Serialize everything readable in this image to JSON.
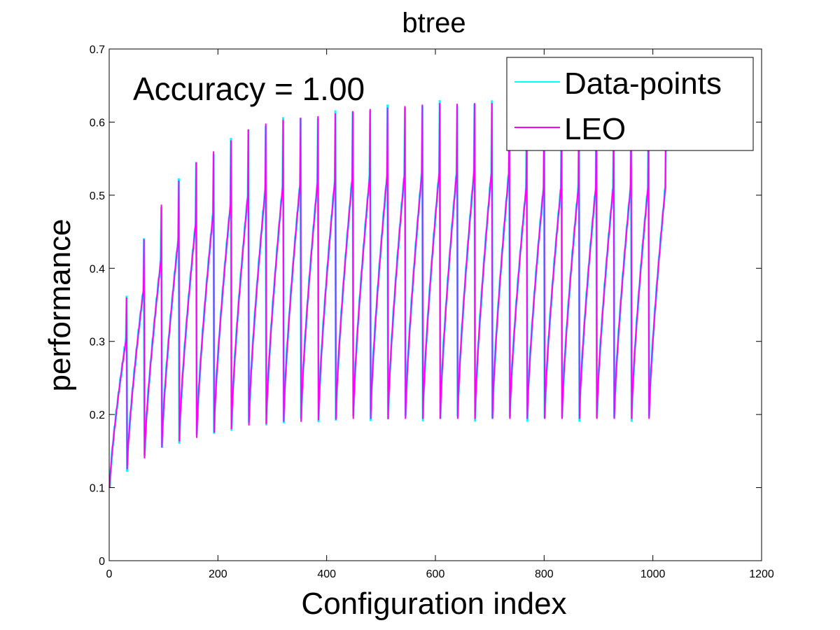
{
  "chart_data": {
    "type": "line",
    "title": "btree",
    "xlabel": "Configuration index",
    "ylabel": "performance",
    "annotation": "Accuracy = 1.00",
    "xlim": [
      0,
      1200
    ],
    "ylim": [
      0,
      0.7
    ],
    "xticks": [
      0,
      200,
      400,
      600,
      800,
      1000,
      1200
    ],
    "yticks": [
      0,
      0.1,
      0.2,
      0.3,
      0.4,
      0.5,
      0.6,
      0.7
    ],
    "xtick_labels": [
      "0",
      "200",
      "400",
      "600",
      "800",
      "1000",
      "1200"
    ],
    "ytick_labels": [
      "0",
      "0.1",
      "0.2",
      "0.3",
      "0.4",
      "0.5",
      "0.6",
      "0.7"
    ],
    "grid": false,
    "legend_position": "top-right",
    "block_size": 32,
    "block_min": [
      0.1,
      0.125,
      0.14,
      0.155,
      0.163,
      0.168,
      0.175,
      0.18,
      0.185,
      0.187,
      0.19,
      0.19,
      0.192,
      0.193,
      0.194,
      0.194,
      0.194,
      0.194,
      0.194,
      0.194,
      0.194,
      0.194,
      0.194,
      0.194,
      0.194,
      0.194,
      0.194,
      0.194,
      0.194,
      0.194,
      0.194,
      0.194
    ],
    "block_max": [
      0.36,
      0.44,
      0.487,
      0.52,
      0.545,
      0.56,
      0.575,
      0.59,
      0.598,
      0.603,
      0.606,
      0.608,
      0.612,
      0.615,
      0.618,
      0.62,
      0.622,
      0.624,
      0.626,
      0.625,
      0.626,
      0.626,
      0.625,
      0.6,
      0.6,
      0.6,
      0.6,
      0.6,
      0.6,
      0.6,
      0.6,
      0.6
    ],
    "series": [
      {
        "name": "Data-points",
        "color": "#00ffff"
      },
      {
        "name": "LEO",
        "color": "#ff00ff"
      }
    ]
  }
}
